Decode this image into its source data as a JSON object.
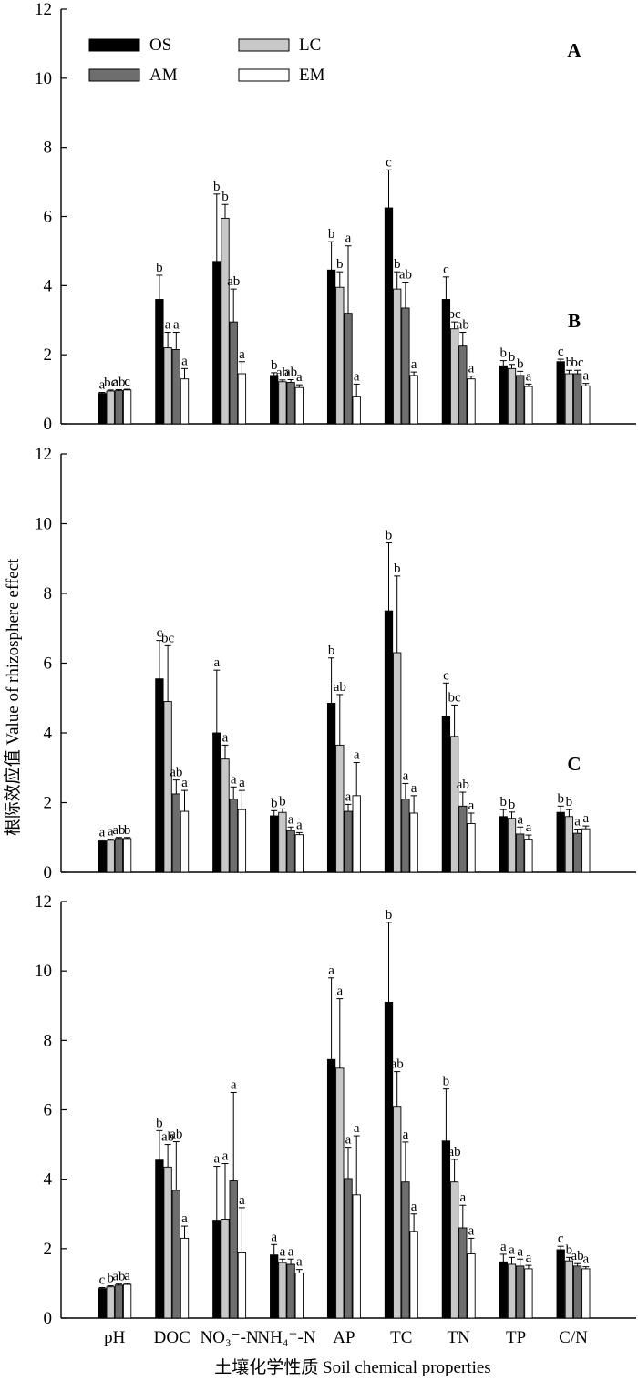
{
  "figure": {
    "ylabel": "根际效应值 Value of rhizosphere effect",
    "xlabel": "土壤化学性质 Soil chemical properties",
    "categories": [
      "pH",
      "DOC",
      "NO₃⁻-N",
      "NH₄⁺-N",
      "AP",
      "TC",
      "TN",
      "TP",
      "C/N"
    ],
    "yticks": [
      0,
      2,
      4,
      6,
      8,
      10,
      12
    ],
    "legend": [
      "OS",
      "AM",
      "LC",
      "EM"
    ]
  },
  "colors": {
    "OS": "#000000",
    "LC": "#c8c8c8",
    "AM": "#6e6e6e",
    "EM": "#ffffff"
  },
  "chart_data": [
    {
      "type": "bar",
      "panel_label": "A",
      "ylim": [
        0,
        12
      ],
      "categories": [
        "pH",
        "DOC",
        "NO₃⁻-N",
        "NH₄⁺-N",
        "AP",
        "TC",
        "TN",
        "TP",
        "C/N"
      ],
      "series": [
        {
          "name": "OS",
          "values": [
            0.88,
            3.6,
            4.7,
            1.4,
            4.45,
            6.25,
            3.6,
            1.68,
            1.8
          ],
          "errors": [
            0.03,
            0.7,
            1.95,
            0.08,
            0.82,
            1.1,
            0.65,
            0.15,
            0.07
          ],
          "sig": [
            "a",
            "b",
            "b",
            "b",
            "b",
            "c",
            "c",
            "b",
            "c"
          ]
        },
        {
          "name": "LC",
          "values": [
            0.95,
            2.2,
            5.95,
            1.22,
            3.95,
            3.9,
            2.75,
            1.6,
            1.45
          ],
          "errors": [
            0.03,
            0.45,
            0.4,
            0.05,
            0.45,
            0.5,
            0.2,
            0.12,
            0.1
          ],
          "sig": [
            "bc",
            "a",
            "b",
            "ab",
            "b",
            "b",
            "bc",
            "b",
            "b"
          ]
        },
        {
          "name": "AM",
          "values": [
            0.96,
            2.15,
            2.95,
            1.2,
            3.2,
            3.35,
            2.25,
            1.4,
            1.45
          ],
          "errors": [
            0.03,
            0.5,
            0.95,
            0.08,
            1.95,
            0.75,
            0.4,
            0.12,
            0.1
          ],
          "sig": [
            "ab",
            "a",
            "ab",
            "ab",
            "a",
            "ab",
            "ab",
            "b",
            "bc"
          ]
        },
        {
          "name": "EM",
          "values": [
            0.98,
            1.3,
            1.45,
            1.05,
            0.8,
            1.4,
            1.3,
            1.08,
            1.1
          ],
          "errors": [
            0.02,
            0.3,
            0.35,
            0.08,
            0.35,
            0.1,
            0.08,
            0.07,
            0.07
          ],
          "sig": [
            "c",
            "a",
            "a",
            "a",
            "a",
            "a",
            "a",
            "a",
            "a"
          ]
        }
      ]
    },
    {
      "type": "bar",
      "panel_label": "B",
      "ylim": [
        0,
        12
      ],
      "categories": [
        "pH",
        "DOC",
        "NO₃⁻-N",
        "NH₄⁺-N",
        "AP",
        "TC",
        "TN",
        "TP",
        "C/N"
      ],
      "series": [
        {
          "name": "OS",
          "values": [
            0.9,
            5.55,
            4.0,
            1.62,
            4.85,
            7.5,
            4.48,
            1.6,
            1.72
          ],
          "errors": [
            0.03,
            1.1,
            1.8,
            0.15,
            1.3,
            1.95,
            0.95,
            0.2,
            0.18
          ],
          "sig": [
            "a",
            "c",
            "a",
            "b",
            "b",
            "b",
            "c",
            "b",
            "b"
          ]
        },
        {
          "name": "LC",
          "values": [
            0.92,
            4.9,
            3.25,
            1.72,
            3.65,
            6.3,
            3.9,
            1.55,
            1.6
          ],
          "errors": [
            0.03,
            1.6,
            0.4,
            0.1,
            1.45,
            2.2,
            0.9,
            0.18,
            0.2
          ],
          "sig": [
            "a",
            "bc",
            "a",
            "b",
            "ab",
            "b",
            "bc",
            "b",
            "b"
          ]
        },
        {
          "name": "AM",
          "values": [
            0.97,
            2.25,
            2.1,
            1.2,
            1.75,
            2.1,
            1.9,
            1.1,
            1.12
          ],
          "errors": [
            0.03,
            0.4,
            0.35,
            0.1,
            0.2,
            0.45,
            0.4,
            0.2,
            0.12
          ],
          "sig": [
            "ab",
            "ab",
            "a",
            "a",
            "a",
            "a",
            "ab",
            "a",
            "a"
          ]
        },
        {
          "name": "EM",
          "values": [
            0.97,
            1.75,
            1.8,
            1.08,
            2.2,
            1.7,
            1.4,
            0.95,
            1.25
          ],
          "errors": [
            0.03,
            0.6,
            0.55,
            0.06,
            0.95,
            0.5,
            0.3,
            0.12,
            0.08
          ],
          "sig": [
            "b",
            "a",
            "a",
            "a",
            "a",
            "a",
            "a",
            "a",
            "a"
          ]
        }
      ]
    },
    {
      "type": "bar",
      "panel_label": "C",
      "ylim": [
        0,
        12
      ],
      "categories": [
        "pH",
        "DOC",
        "NO₃⁻-N",
        "NH₄⁺-N",
        "AP",
        "TC",
        "TN",
        "TP",
        "C/N"
      ],
      "series": [
        {
          "name": "OS",
          "values": [
            0.85,
            4.55,
            2.82,
            1.82,
            7.45,
            9.1,
            5.1,
            1.62,
            1.97
          ],
          "errors": [
            0.03,
            0.85,
            1.55,
            0.3,
            2.35,
            2.3,
            1.5,
            0.22,
            0.1
          ],
          "sig": [
            "c",
            "b",
            "a",
            "a",
            "a",
            "b",
            "b",
            "a",
            "c"
          ]
        },
        {
          "name": "LC",
          "values": [
            0.9,
            4.35,
            2.85,
            1.6,
            7.2,
            6.1,
            3.92,
            1.55,
            1.65
          ],
          "errors": [
            0.03,
            0.65,
            1.6,
            0.1,
            2.0,
            1.0,
            0.65,
            0.2,
            0.1
          ],
          "sig": [
            "b",
            "ab",
            "a",
            "a",
            "a",
            "ab",
            "ab",
            "a",
            "b"
          ]
        },
        {
          "name": "AM",
          "values": [
            0.95,
            3.68,
            3.95,
            1.55,
            4.02,
            3.92,
            2.6,
            1.5,
            1.5
          ],
          "errors": [
            0.03,
            1.4,
            2.55,
            0.15,
            0.9,
            1.15,
            0.65,
            0.2,
            0.07
          ],
          "sig": [
            "ab",
            "ab",
            "a",
            "a",
            "a",
            "a",
            "a",
            "a",
            "ab"
          ]
        },
        {
          "name": "EM",
          "values": [
            0.97,
            2.3,
            1.88,
            1.3,
            3.55,
            2.5,
            1.85,
            1.42,
            1.42
          ],
          "errors": [
            0.03,
            0.35,
            1.3,
            0.1,
            1.7,
            0.5,
            0.45,
            0.1,
            0.06
          ],
          "sig": [
            "a",
            "a",
            "a",
            "a",
            "a",
            "a",
            "a",
            "a",
            "a"
          ]
        }
      ]
    }
  ]
}
